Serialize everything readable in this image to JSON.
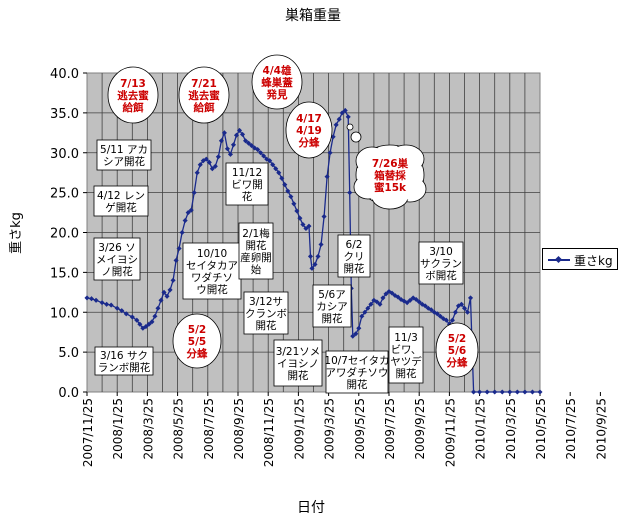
{
  "chart_data": {
    "type": "line",
    "title": "巣箱重量",
    "xlabel": "日付",
    "ylabel": "重さkg",
    "ylim": [
      0,
      40
    ],
    "yticks": [
      "0.0",
      "5.0",
      "10.0",
      "15.0",
      "20.0",
      "25.0",
      "30.0",
      "35.0",
      "40.0"
    ],
    "xticks": [
      "2007/11/25",
      "2008/1/25",
      "2008/3/25",
      "2008/5/25",
      "2008/7/25",
      "2008/9/25",
      "2008/11/25",
      "2009/1/25",
      "2009/3/25",
      "2009/5/25",
      "2009/7/25",
      "2009/9/25",
      "2009/11/25",
      "2010/1/25",
      "2010/3/25",
      "2010/5/25",
      "2010/7/25",
      "2010/9/25"
    ],
    "grid": true,
    "legend_position": "right",
    "series": [
      {
        "name": "重さkg",
        "color": "#1a2a8c",
        "points": [
          [
            0,
            11.8
          ],
          [
            0.3,
            11.7
          ],
          [
            0.6,
            11.5
          ],
          [
            1.0,
            11.2
          ],
          [
            1.3,
            11.0
          ],
          [
            1.6,
            10.9
          ],
          [
            2.0,
            10.5
          ],
          [
            2.3,
            10.2
          ],
          [
            2.6,
            9.8
          ],
          [
            3.0,
            9.4
          ],
          [
            3.3,
            9.0
          ],
          [
            3.5,
            8.5
          ],
          [
            3.7,
            8.0
          ],
          [
            3.9,
            8.2
          ],
          [
            4.1,
            8.5
          ],
          [
            4.3,
            8.8
          ],
          [
            4.5,
            9.5
          ],
          [
            4.7,
            10.5
          ],
          [
            4.9,
            11.5
          ],
          [
            5.1,
            12.5
          ],
          [
            5.3,
            12.0
          ],
          [
            5.5,
            12.8
          ],
          [
            5.7,
            14.0
          ],
          [
            5.9,
            16.5
          ],
          [
            6.1,
            18.0
          ],
          [
            6.3,
            20.0
          ],
          [
            6.5,
            21.5
          ],
          [
            6.7,
            22.5
          ],
          [
            6.9,
            22.8
          ],
          [
            7.1,
            25.0
          ],
          [
            7.3,
            27.5
          ],
          [
            7.5,
            28.5
          ],
          [
            7.7,
            29.0
          ],
          [
            7.9,
            29.2
          ],
          [
            8.1,
            28.8
          ],
          [
            8.3,
            28.0
          ],
          [
            8.5,
            28.3
          ],
          [
            8.7,
            29.5
          ],
          [
            8.9,
            31.5
          ],
          [
            9.1,
            32.5
          ],
          [
            9.3,
            30.5
          ],
          [
            9.5,
            29.8
          ],
          [
            9.7,
            31.0
          ],
          [
            9.9,
            32.2
          ],
          [
            10.1,
            32.8
          ],
          [
            10.3,
            32.3
          ],
          [
            10.5,
            31.5
          ],
          [
            10.7,
            31.2
          ],
          [
            10.9,
            30.9
          ],
          [
            11.1,
            30.6
          ],
          [
            11.3,
            30.4
          ],
          [
            11.5,
            30.0
          ],
          [
            11.7,
            29.6
          ],
          [
            11.9,
            29.2
          ],
          [
            12.1,
            29.0
          ],
          [
            12.3,
            28.5
          ],
          [
            12.5,
            28.0
          ],
          [
            12.7,
            27.5
          ],
          [
            12.9,
            26.8
          ],
          [
            13.1,
            26.0
          ],
          [
            13.3,
            25.2
          ],
          [
            13.5,
            24.5
          ],
          [
            13.7,
            23.6
          ],
          [
            13.9,
            22.7
          ],
          [
            14.1,
            21.8
          ],
          [
            14.3,
            21.0
          ],
          [
            14.5,
            20.5
          ],
          [
            14.7,
            20.8
          ],
          [
            14.8,
            17.0
          ],
          [
            14.9,
            15.5
          ],
          [
            15.1,
            16.0
          ],
          [
            15.3,
            17.0
          ],
          [
            15.5,
            18.5
          ],
          [
            15.7,
            22.0
          ],
          [
            15.9,
            27.0
          ],
          [
            16.1,
            30.0
          ],
          [
            16.3,
            32.0
          ],
          [
            16.5,
            33.5
          ],
          [
            16.7,
            34.2
          ],
          [
            16.9,
            35.0
          ],
          [
            17.1,
            35.3
          ],
          [
            17.3,
            34.5
          ],
          [
            17.4,
            25.0
          ],
          [
            17.5,
            13.0
          ],
          [
            17.6,
            7.0
          ],
          [
            17.8,
            7.3
          ],
          [
            18.0,
            8.0
          ],
          [
            18.2,
            9.5
          ],
          [
            18.4,
            10.0
          ],
          [
            18.6,
            10.5
          ],
          [
            18.8,
            11.0
          ],
          [
            19.0,
            11.5
          ],
          [
            19.2,
            11.3
          ],
          [
            19.4,
            11.0
          ],
          [
            19.6,
            11.8
          ],
          [
            19.8,
            12.3
          ],
          [
            20.0,
            12.6
          ],
          [
            20.2,
            12.4
          ],
          [
            20.4,
            12.1
          ],
          [
            20.6,
            11.9
          ],
          [
            20.8,
            11.6
          ],
          [
            21.0,
            11.4
          ],
          [
            21.2,
            11.2
          ],
          [
            21.4,
            11.5
          ],
          [
            21.6,
            11.8
          ],
          [
            21.8,
            11.6
          ],
          [
            22.0,
            11.3
          ],
          [
            22.2,
            11.0
          ],
          [
            22.4,
            10.8
          ],
          [
            22.6,
            10.5
          ],
          [
            22.8,
            10.3
          ],
          [
            23.0,
            10.0
          ],
          [
            23.2,
            9.8
          ],
          [
            23.4,
            9.5
          ],
          [
            23.6,
            9.2
          ],
          [
            23.8,
            9.0
          ],
          [
            24.0,
            8.5
          ],
          [
            24.2,
            9.0
          ],
          [
            24.4,
            10.0
          ],
          [
            24.6,
            10.8
          ],
          [
            24.8,
            11.0
          ],
          [
            25.0,
            10.5
          ],
          [
            25.2,
            10.0
          ],
          [
            25.4,
            11.8
          ],
          [
            25.6,
            0.0
          ],
          [
            26.0,
            0.0
          ],
          [
            26.5,
            0.0
          ],
          [
            27.0,
            0.0
          ],
          [
            27.5,
            0.0
          ],
          [
            28.0,
            0.0
          ],
          [
            28.5,
            0.0
          ],
          [
            29.0,
            0.0
          ],
          [
            29.5,
            0.0
          ],
          [
            30.0,
            0.0
          ]
        ]
      }
    ],
    "annotations": [
      {
        "text": "7/13\n逃去蜜\n給餌",
        "color": "#cc0000",
        "shape": "oval"
      },
      {
        "text": "7/21\n逃去蜜\n給餌",
        "color": "#cc0000",
        "shape": "oval"
      },
      {
        "text": "4/4雄\n蜂巣蓋\n発見",
        "color": "#cc0000",
        "shape": "oval"
      },
      {
        "text": "4/17\n4/19\n分蜂",
        "color": "#cc0000",
        "shape": "oval"
      },
      {
        "text": "7/26巣\n箱替採\n蜜15k",
        "color": "#cc0000",
        "shape": "cloud"
      },
      {
        "text": "5/11 アカ\nシア開花",
        "color": "#000000",
        "shape": "box"
      },
      {
        "text": "4/12 レン\nゲ開花",
        "color": "#000000",
        "shape": "box"
      },
      {
        "text": "3/26 ソ\nメイヨシ\nノ開花",
        "color": "#000000",
        "shape": "box"
      },
      {
        "text": "3/16 サク\nランボ開花",
        "color": "#000000",
        "shape": "box"
      },
      {
        "text": "10/10\nセイタカア\nワダチソ\nウ開花",
        "color": "#000000",
        "shape": "box"
      },
      {
        "text": "11/12\nビワ開\n花",
        "color": "#000000",
        "shape": "box"
      },
      {
        "text": "2/1梅\n開花\n産卵開\n始",
        "color": "#000000",
        "shape": "box"
      },
      {
        "text": "3/12サ\nクランボ\n開花",
        "color": "#000000",
        "shape": "box"
      },
      {
        "text": "3/21ソメ\nイヨシノ\n開花",
        "color": "#000000",
        "shape": "box"
      },
      {
        "text": "5/6ア\nカシア\n開花",
        "color": "#000000",
        "shape": "box"
      },
      {
        "text": "6/2\nクリ\n開花",
        "color": "#000000",
        "shape": "box"
      },
      {
        "text": "10/7セイタカ\nアワダチソウ\n開花",
        "color": "#000000",
        "shape": "box"
      },
      {
        "text": "11/3\nビワ、\nヤツデ\n開花",
        "color": "#000000",
        "shape": "box"
      },
      {
        "text": "3/10\nサクラン\nボ開花",
        "color": "#000000",
        "shape": "box"
      },
      {
        "text": "5/2\n5/5\n分蜂",
        "color": "#cc0000",
        "shape": "oval"
      },
      {
        "text": "5/2\n5/6\n分蜂",
        "color": "#cc0000",
        "shape": "oval"
      }
    ]
  }
}
